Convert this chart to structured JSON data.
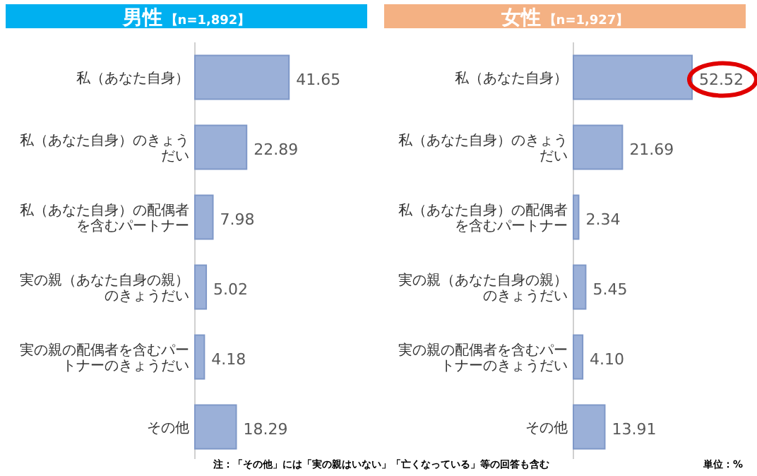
{
  "chart_data": [
    {
      "type": "bar",
      "orientation": "horizontal",
      "title": "男性【n=1,892】",
      "categories": [
        "私（あなた自身）",
        "私（あなた自身）のきょうだい",
        "私（あなた自身）の配偶者を含むパートナー",
        "実の親（あなた自身の親）のきょうだい",
        "実の親の配偶者を含むパートナーのきょうだい",
        "その他"
      ],
      "values": [
        41.65,
        22.89,
        7.98,
        5.02,
        4.18,
        18.29
      ],
      "color": "#9bb0d8",
      "value_labels": [
        "41.65",
        "22.89",
        "7.98",
        "5.02",
        "4.18",
        "18.29"
      ]
    },
    {
      "type": "bar",
      "orientation": "horizontal",
      "title": "女性【n=1,927】",
      "categories": [
        "私（あなた自身）",
        "私（あなた自身）のきょうだい",
        "私（あなた自身）の配偶者を含むパートナー",
        "実の親（あなた自身の親）のきょうだい",
        "実の親の配偶者を含むパートナーのきょうだい",
        "その他"
      ],
      "values": [
        52.52,
        21.69,
        2.34,
        5.45,
        4.1,
        13.91
      ],
      "color": "#9bb0d8",
      "value_labels": [
        "52.52",
        "21.69",
        "2.34",
        "5.45",
        "4.10",
        "13.91"
      ],
      "annotations": [
        "注：「その他」には「実の親はいない」「亡くなっている」等の回答も含む",
        "単位：%"
      ]
    }
  ]
}
